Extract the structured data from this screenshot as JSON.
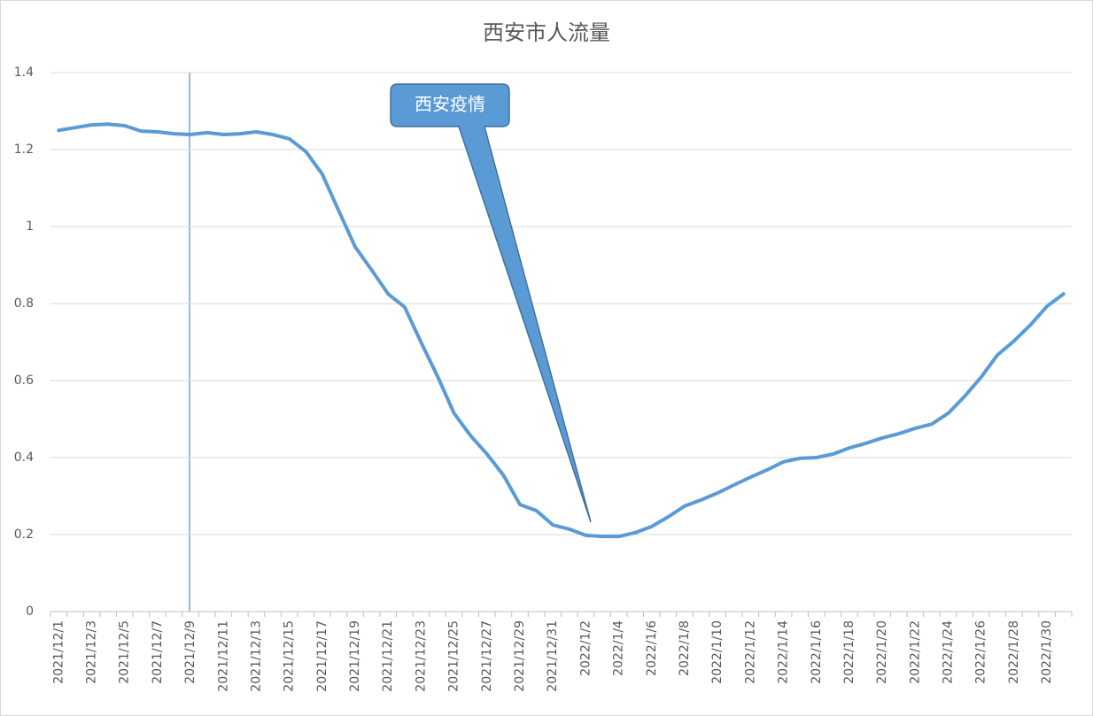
{
  "chart_data": {
    "type": "line",
    "title": "西安市人流量",
    "categories": [
      "2021/12/1",
      null,
      "2021/12/3",
      null,
      "2021/12/5",
      null,
      "2021/12/7",
      null,
      "2021/12/9",
      null,
      "2021/12/11",
      null,
      "2021/12/13",
      null,
      "2021/12/15",
      null,
      "2021/12/17",
      null,
      "2021/12/19",
      null,
      "2021/12/21",
      null,
      "2021/12/23",
      null,
      "2021/12/25",
      null,
      "2021/12/27",
      null,
      "2021/12/29",
      null,
      "2021/12/31",
      null,
      "2022/1/2",
      null,
      "2022/1/4",
      null,
      "2022/1/6",
      null,
      "2022/1/8",
      null,
      "2022/1/10",
      null,
      "2022/1/12",
      null,
      "2022/1/14",
      null,
      "2022/1/16",
      null,
      "2022/1/18",
      null,
      "2022/1/20",
      null,
      "2022/1/22",
      null,
      "2022/1/24",
      null,
      "2022/1/26",
      null,
      "2022/1/28",
      null,
      "2022/1/30",
      null
    ],
    "values": [
      1.25,
      1.257,
      1.264,
      1.266,
      1.262,
      1.248,
      1.246,
      1.241,
      1.239,
      1.244,
      1.239,
      1.241,
      1.246,
      1.239,
      1.228,
      1.195,
      1.136,
      1.041,
      0.947,
      0.887,
      0.825,
      0.791,
      0.699,
      0.611,
      0.515,
      0.457,
      0.409,
      0.354,
      0.278,
      0.262,
      0.225,
      0.214,
      0.198,
      0.195,
      0.195,
      0.205,
      0.221,
      0.246,
      0.274,
      0.29,
      0.308,
      0.329,
      0.349,
      0.368,
      0.389,
      0.398,
      0.4,
      0.409,
      0.425,
      0.437,
      0.451,
      0.462,
      0.476,
      0.487,
      0.515,
      0.559,
      0.609,
      0.667,
      0.703,
      0.745,
      0.793,
      0.825
    ],
    "color": "#5b9bd5",
    "ylim": [
      0,
      1.4
    ],
    "yticks": [
      0,
      0.2,
      0.4,
      0.6,
      0.8,
      1,
      1.2,
      1.4
    ],
    "grid": true,
    "annotation": "西安疫情"
  }
}
